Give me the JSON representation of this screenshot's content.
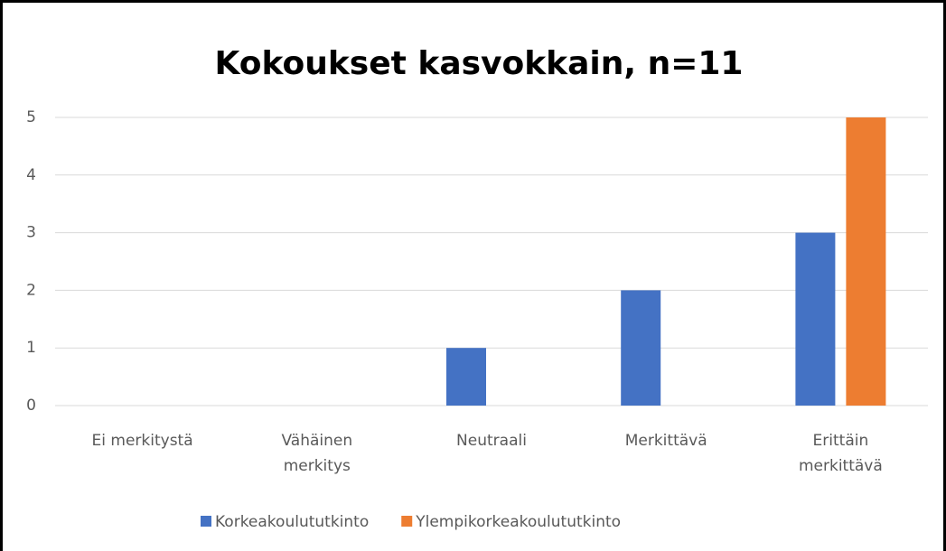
{
  "chart_data": {
    "type": "bar",
    "title": "Kokoukset kasvokkain, n=11",
    "categories": [
      "Ei merkitystä",
      "Vähäinen merkitys",
      "Neutraali",
      "Merkittävä",
      "Erittäin merkittävä"
    ],
    "series": [
      {
        "name": "Korkeakoulututkinto",
        "color": "#4472c4",
        "values": [
          0,
          0,
          1,
          2,
          3
        ]
      },
      {
        "name": "Ylempikorkeakoulututkinto",
        "color": "#ed7d31",
        "values": [
          0,
          0,
          0,
          0,
          5
        ]
      }
    ],
    "ylim": [
      0,
      5
    ],
    "yticks": [
      0,
      1,
      2,
      3,
      4,
      5
    ],
    "grid": true,
    "legend": "bottom"
  }
}
